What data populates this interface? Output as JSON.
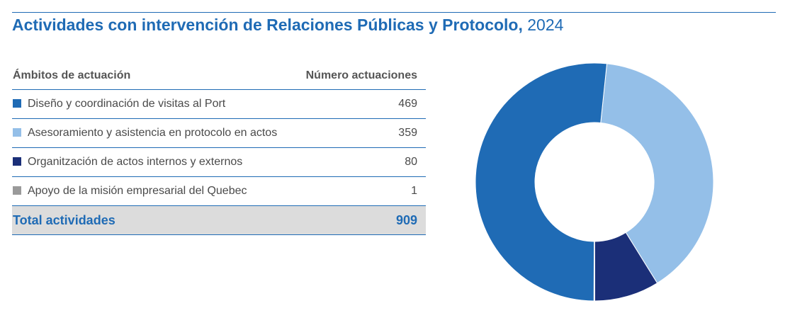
{
  "title": "Actividades con intervención de Relaciones Públicas y Protocolo,",
  "year": "2024",
  "table": {
    "headers": [
      "Ámbitos de actuación",
      "Número actuaciones"
    ],
    "total_label": "Total actividades",
    "total_value": "909"
  },
  "chart_data": {
    "type": "pie",
    "donut": true,
    "categories": [
      "Diseño y coordinación de visitas al Port",
      "Asesoramiento y asistencia en protocolo en actos",
      "Organitzación de actos internos y externos",
      "Apoyo de la misión empresarial del Quebec"
    ],
    "values": [
      469,
      359,
      80,
      1
    ],
    "colors": [
      "#1f6bb5",
      "#94bfe8",
      "#1b2f78",
      "#9a9a9a"
    ],
    "total": 909
  }
}
